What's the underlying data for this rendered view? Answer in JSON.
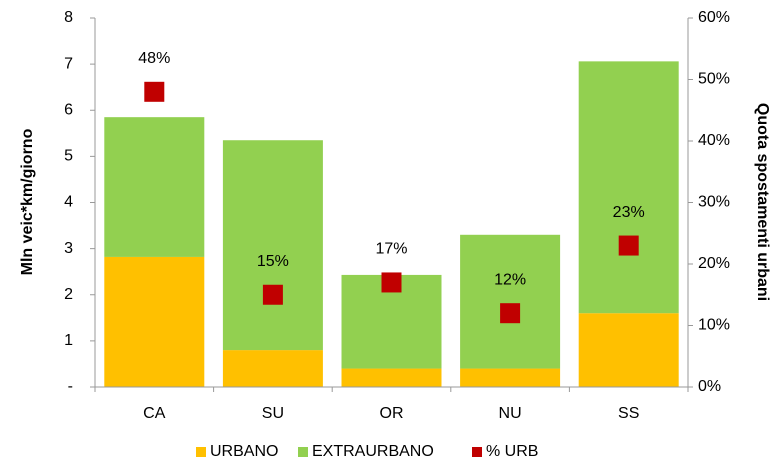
{
  "chart_data": {
    "type": "bar",
    "stacked": true,
    "y_label": "Mln veic*km/giorno",
    "y2_label": "Quota spostamenti urbani",
    "categories": [
      "CA",
      "SU",
      "OR",
      "NU",
      "SS"
    ],
    "series": [
      {
        "name": "URBANO",
        "color": "#FFC000",
        "values": [
          2.82,
          0.8,
          0.4,
          0.4,
          1.6
        ]
      },
      {
        "name": "EXTRAURBANO",
        "color": "#92D050",
        "values": [
          3.03,
          4.55,
          2.03,
          2.9,
          5.46
        ]
      },
      {
        "name": "% URB",
        "color": "#C00000",
        "axis": "y2",
        "values": [
          48,
          15,
          17,
          12,
          23
        ],
        "value_labels": [
          "48%",
          "15%",
          "17%",
          "12%",
          "23%"
        ]
      }
    ],
    "ylim": [
      0,
      8
    ],
    "yticks": [
      {
        "value": 0,
        "label": "-"
      },
      1,
      2,
      3,
      4,
      5,
      6,
      7,
      8
    ],
    "y2lim": [
      0,
      60
    ],
    "y2ticks": [
      {
        "value": 0,
        "label": "0%"
      },
      {
        "value": 10,
        "label": "10%"
      },
      {
        "value": 20,
        "label": "20%"
      },
      {
        "value": 30,
        "label": "30%"
      },
      {
        "value": 40,
        "label": "40%"
      },
      {
        "value": 50,
        "label": "50%"
      },
      {
        "value": 60,
        "label": "60%"
      }
    ],
    "grid": false,
    "legend": "bottom"
  }
}
